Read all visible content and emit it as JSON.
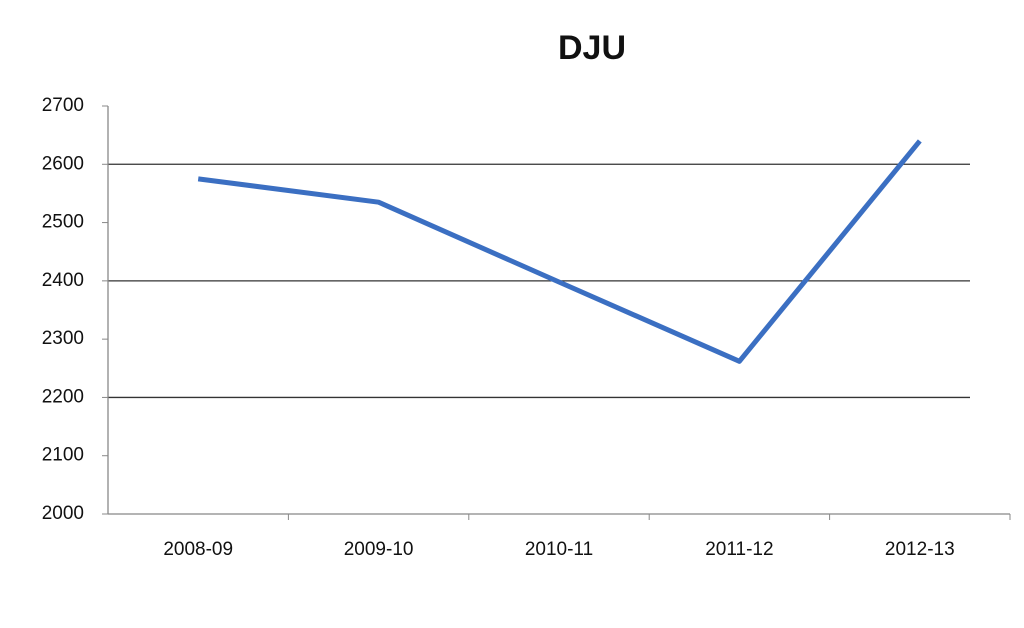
{
  "chart_data": {
    "type": "line",
    "title": "DJU",
    "categories": [
      "2008-09",
      "2009-10",
      "2010-11",
      "2011-12",
      "2012-13"
    ],
    "values": [
      2575,
      2535,
      2398,
      2262,
      2640
    ],
    "color": "#3b6fc2",
    "ylim": [
      2000,
      2700
    ],
    "yticks": [
      2000,
      2100,
      2200,
      2300,
      2400,
      2500,
      2600,
      2700
    ],
    "grid": true
  }
}
